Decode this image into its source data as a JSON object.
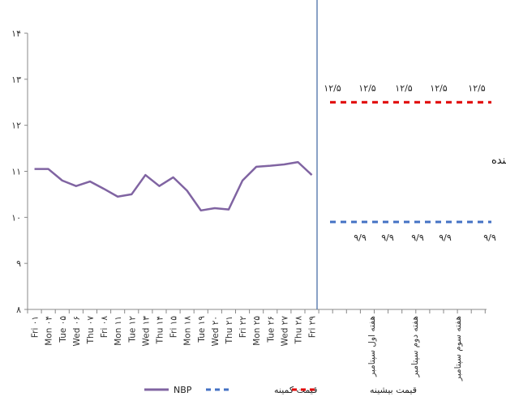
{
  "chart_data": {
    "type": "line",
    "ylim": [
      8,
      14
    ],
    "yticks": [
      "۸",
      "۹",
      "۱۰",
      "۱۱",
      "۱۲",
      "۱۳",
      "۱۴"
    ],
    "categories": [
      "Fri ۰۱",
      "Mon ۰۴",
      "Tue ۰۵",
      "Wed ۰۶",
      "Thu ۰۷",
      "Fri ۰۸",
      "Mon ۱۱",
      "Tue ۱۲",
      "Wed ۱۳",
      "Thu ۱۴",
      "Fri ۱۵",
      "Mon ۱۸",
      "Tue ۱۹",
      "Wed ۲۰",
      "Thu ۲۱",
      "Fri ۲۲",
      "Mon ۲۵",
      "Tue ۲۶",
      "Wed ۲۷",
      "Thu ۲۸",
      "Fri ۲۹"
    ],
    "series": [
      {
        "name": "NBP",
        "color": "#8064a2",
        "values": [
          11.05,
          11.05,
          10.8,
          10.68,
          10.78,
          10.62,
          10.45,
          10.5,
          10.92,
          10.68,
          10.87,
          10.58,
          10.15,
          10.2,
          10.17,
          10.8,
          11.1,
          11.12,
          11.15,
          11.2,
          10.92
        ]
      }
    ],
    "forecast": {
      "weeks": [
        "هفته اول سپتامبر",
        "هفته دوم سپتامبر",
        "هفته سوم سپتامبر"
      ],
      "max": {
        "name": "قیمت بیشینه",
        "color": "#e00000",
        "value": 12.5,
        "labels": [
          "۱۲/۵",
          "۱۲/۵",
          "۱۲/۵",
          "۱۲/۵",
          "۱۲/۵"
        ]
      },
      "min": {
        "name": "قیمت کمینه",
        "color": "#4472c4",
        "value": 9.9,
        "labels": [
          "۹/۹",
          "۹/۹",
          "۹/۹",
          "۹/۹",
          "۹/۹"
        ]
      },
      "annotation": "دامنه نوسانی قیمت در ماه آینده"
    },
    "legend": {
      "position": "bottom"
    },
    "grid": false
  }
}
